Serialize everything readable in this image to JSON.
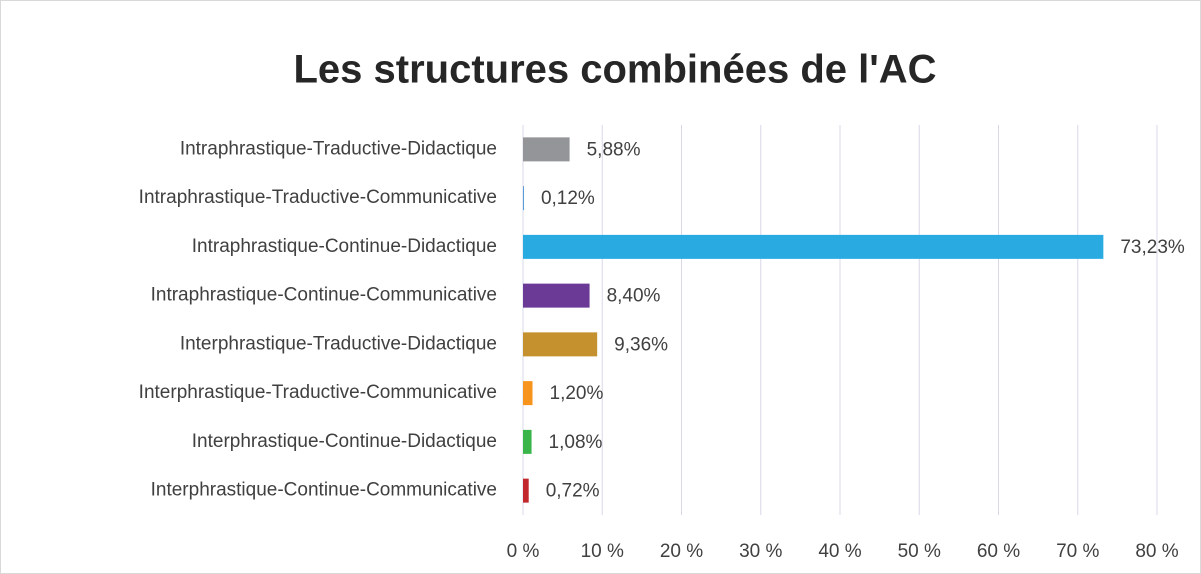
{
  "chart_data": {
    "type": "bar",
    "orientation": "horizontal",
    "title": "Les structures combinées de l'AC",
    "categories": [
      "Intraphrastique-Traductive-Didactique",
      "Intraphrastique-Traductive-Communicative",
      "Intraphrastique-Continue-Didactique",
      "Intraphrastique-Continue-Communicative",
      "Interphrastique-Traductive-Didactique",
      "Interphrastique-Traductive-Communicative",
      "Interphrastique-Continue-Didactique",
      "Interphrastique-Continue-Communicative"
    ],
    "values": [
      5.88,
      0.12,
      73.23,
      8.4,
      9.36,
      1.2,
      1.08,
      0.72
    ],
    "value_labels": [
      "5,88%",
      "0,12%",
      "73,23%",
      "8,40%",
      "9,36%",
      "1,20%",
      "1,08%",
      "0,72%"
    ],
    "colors": [
      "#939598",
      "#5b9bd5",
      "#29abe2",
      "#6b3a96",
      "#c4912e",
      "#f7941d",
      "#39b54a",
      "#c1272d"
    ],
    "xlim": [
      0,
      80
    ],
    "xticks": [
      {
        "value": 0,
        "label": "0 %"
      },
      {
        "value": 10,
        "label": "10 %"
      },
      {
        "value": 20,
        "label": "20 %"
      },
      {
        "value": 30,
        "label": "30 %"
      },
      {
        "value": 40,
        "label": "40 %"
      },
      {
        "value": 50,
        "label": "50 %"
      },
      {
        "value": 60,
        "label": "60 %"
      },
      {
        "value": 70,
        "label": "70 %"
      },
      {
        "value": 80,
        "label": "80 %"
      }
    ],
    "grid": true
  }
}
